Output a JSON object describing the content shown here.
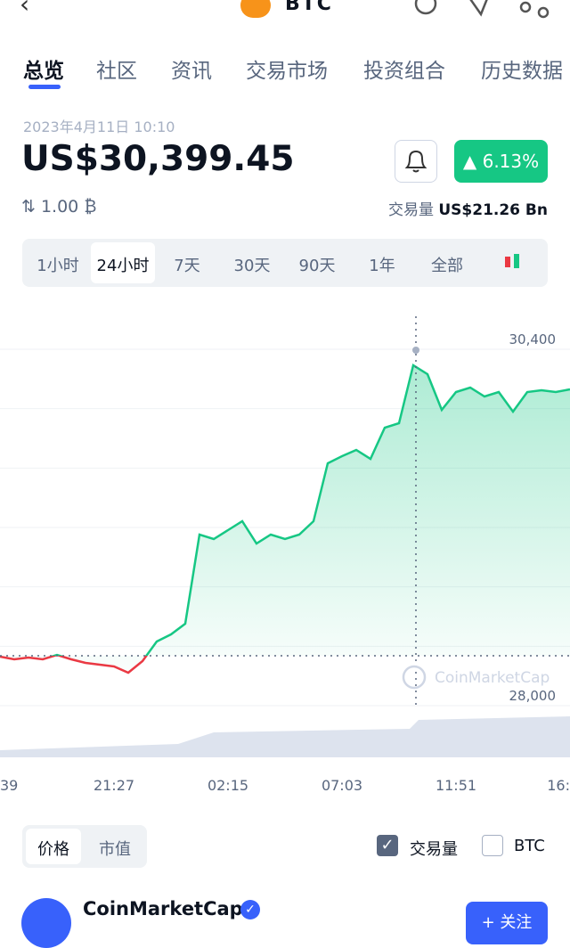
{
  "header": {
    "symbol": "BTC"
  },
  "tabs": [
    "总览",
    "社区",
    "资讯",
    "交易市场",
    "投资组合",
    "历史数据"
  ],
  "quote": {
    "date": "2023年4月11日 10:10",
    "price": "US$30,399.45",
    "change": "6.13%",
    "amount": "1.00 ₿",
    "volume_label": "交易量",
    "volume": "US$21.26 Bn"
  },
  "ranges": [
    "1小时",
    "24小时",
    "7天",
    "30天",
    "90天",
    "1年",
    "全部"
  ],
  "chart_data": {
    "type": "line",
    "color_up": "#16c784",
    "color_down": "#ea3943",
    "baseline": 28336,
    "values": [
      28330,
      28312,
      28324,
      28312,
      28342,
      28312,
      28288,
      28276,
      28264,
      28222,
      28300,
      28432,
      28480,
      28552,
      29152,
      29122,
      29182,
      29242,
      29092,
      29152,
      29122,
      29152,
      29242,
      29632,
      29680,
      29722,
      29662,
      29872,
      29902,
      30292,
      30232,
      29992,
      30112,
      30142,
      30082,
      30112,
      29980,
      30112,
      30124,
      30112,
      30130
    ],
    "ylim": [
      27652,
      30712
    ],
    "yticks": [
      {
        "value": 28000,
        "label": "28,000"
      },
      {
        "value": 30400,
        "label": "30,400"
      }
    ],
    "ygrid": [
      28000,
      28400,
      28800,
      29200,
      29600,
      30000,
      30400
    ],
    "x_labels": [
      "39",
      "21:27",
      "02:15",
      "07:03",
      "11:51",
      "16:"
    ],
    "watermark": "CoinMarketCap"
  },
  "toggles": {
    "options": [
      "价格",
      "市值"
    ],
    "checks": [
      "交易量",
      "BTC"
    ]
  },
  "footer": {
    "name": "CoinMarketCap",
    "follow": "+ 关注"
  }
}
